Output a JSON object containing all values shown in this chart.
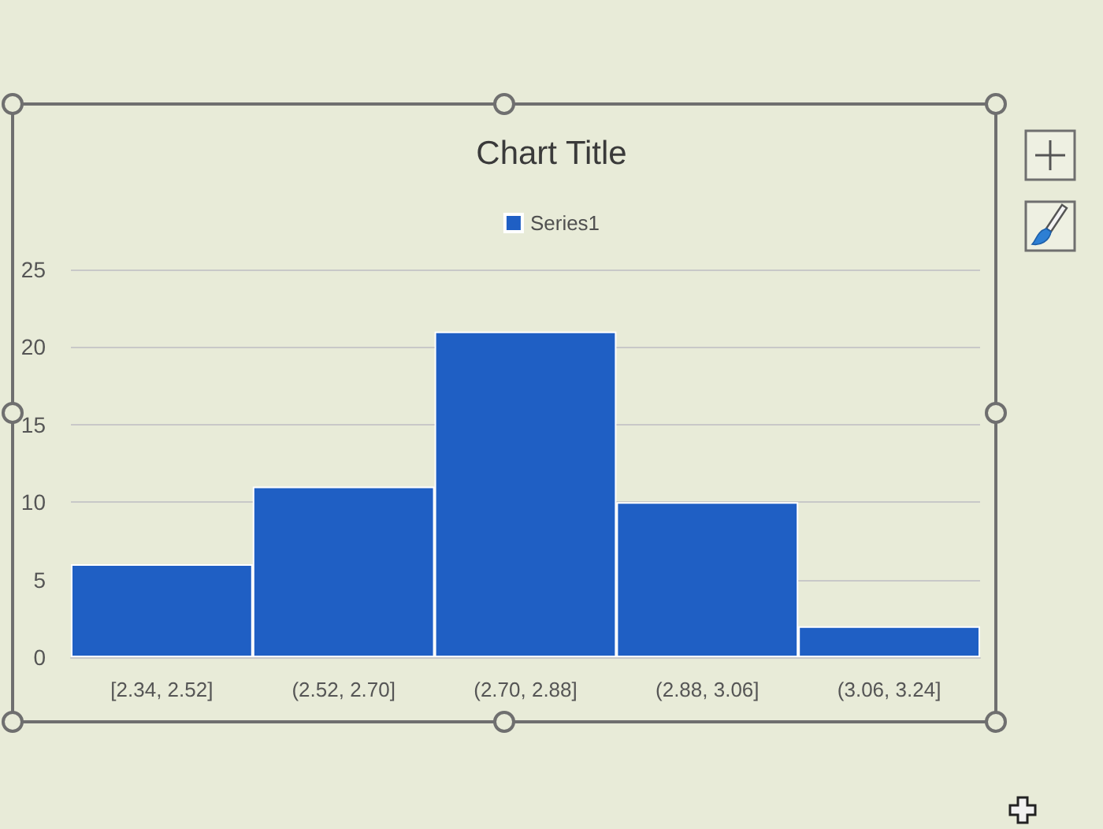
{
  "chart_data": {
    "type": "histogram",
    "title": "Chart Title",
    "categories": [
      "[2.34, 2.52]",
      "(2.52, 2.70]",
      "(2.70, 2.88]",
      "(2.88, 3.06]",
      "(3.06, 3.24]"
    ],
    "series": [
      {
        "name": "Series1",
        "color": "#1f5fc4",
        "values": [
          6,
          11,
          21,
          10,
          2
        ]
      }
    ],
    "ylim": [
      0,
      25
    ],
    "yticks": [
      0,
      5,
      10,
      15,
      20,
      25
    ],
    "grid": "y",
    "legend": "top"
  }
}
